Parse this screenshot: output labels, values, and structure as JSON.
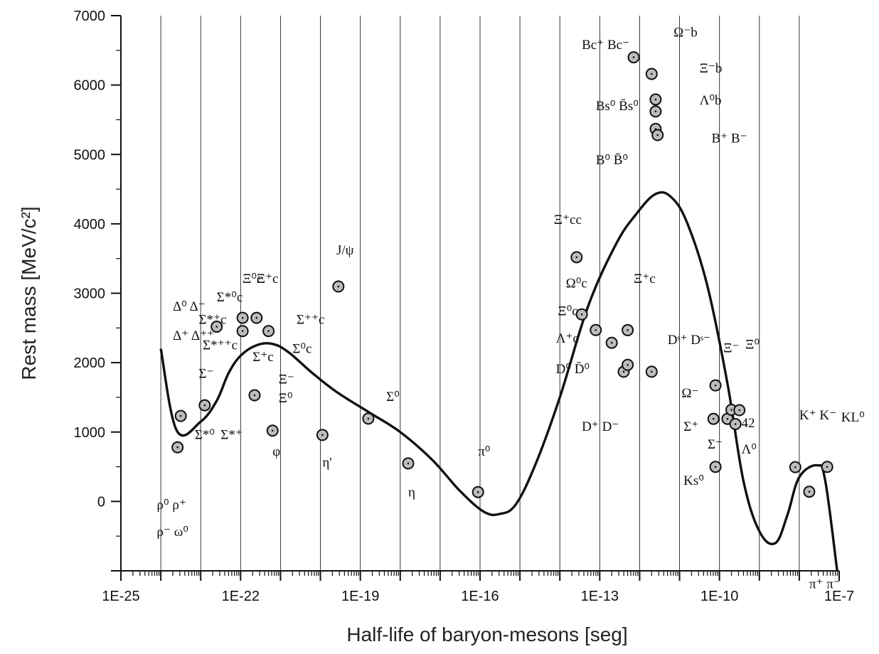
{
  "chart_data": {
    "type": "scatter",
    "xlabel": "Half-life of baryon-mesons [seg]",
    "ylabel": "Rest mass [MeV/c²]",
    "x_scale": "log10",
    "xlim": [
      -25,
      -7
    ],
    "ylim": [
      -1000,
      7000
    ],
    "x_tick_labels": [
      {
        "exp": -25,
        "label": "1E-25"
      },
      {
        "exp": -22,
        "label": "1E-22"
      },
      {
        "exp": -19,
        "label": "1E-19"
      },
      {
        "exp": -16,
        "label": "1E-16"
      },
      {
        "exp": -13,
        "label": "1E-13"
      },
      {
        "exp": -10,
        "label": "1E-10"
      },
      {
        "exp": -7,
        "label": "1E-7"
      }
    ],
    "y_ticks": [
      {
        "value": 0,
        "label": "0"
      },
      {
        "value": 1000,
        "label": "1000"
      },
      {
        "value": 2000,
        "label": "2000"
      },
      {
        "value": 3000,
        "label": "3000"
      },
      {
        "value": 4000,
        "label": "4000"
      },
      {
        "value": 5000,
        "label": "5000"
      },
      {
        "value": 6000,
        "label": "6000"
      },
      {
        "value": 7000,
        "label": "7000"
      }
    ],
    "grid": "vertical lines at each decade",
    "series": [
      {
        "style": "markers",
        "points": [
          {
            "logx": -23.5,
            "y": 1232
          },
          {
            "logx": -23.58,
            "y": 780
          },
          {
            "logx": -22.9,
            "y": 1385
          },
          {
            "logx": -22.6,
            "y": 2518
          },
          {
            "logx": -21.95,
            "y": 2645
          },
          {
            "logx": -21.95,
            "y": 2455
          },
          {
            "logx": -21.6,
            "y": 2645
          },
          {
            "logx": -21.3,
            "y": 2455
          },
          {
            "logx": -21.65,
            "y": 1530
          },
          {
            "logx": -21.2,
            "y": 1020
          },
          {
            "logx": -19.95,
            "y": 958
          },
          {
            "logx": -19.55,
            "y": 3097
          },
          {
            "logx": -18.8,
            "y": 1193
          },
          {
            "logx": -17.8,
            "y": 548
          },
          {
            "logx": -16.05,
            "y": 135
          },
          {
            "logx": -13.58,
            "y": 3519
          },
          {
            "logx": -13.45,
            "y": 2695
          },
          {
            "logx": -13.1,
            "y": 2470
          },
          {
            "logx": -12.7,
            "y": 2286
          },
          {
            "logx": -12.3,
            "y": 2468
          },
          {
            "logx": -12.4,
            "y": 1869
          },
          {
            "logx": -12.3,
            "y": 1968
          },
          {
            "logx": -11.7,
            "y": 1869
          },
          {
            "logx": -12.15,
            "y": 6400
          },
          {
            "logx": -11.7,
            "y": 6160
          },
          {
            "logx": -11.6,
            "y": 5792
          },
          {
            "logx": -11.6,
            "y": 5620
          },
          {
            "logx": -11.6,
            "y": 5367
          },
          {
            "logx": -11.55,
            "y": 5279
          },
          {
            "logx": -10.1,
            "y": 1672
          },
          {
            "logx": -10.15,
            "y": 1190
          },
          {
            "logx": -9.8,
            "y": 1190
          },
          {
            "logx": -9.7,
            "y": 1320
          },
          {
            "logx": -9.5,
            "y": 1315
          },
          {
            "logx": -9.6,
            "y": 1115
          },
          {
            "logx": -10.1,
            "y": 498
          },
          {
            "logx": -8.1,
            "y": 494
          },
          {
            "logx": -7.75,
            "y": 140
          },
          {
            "logx": -7.3,
            "y": 498
          }
        ]
      },
      {
        "style": "line",
        "points": [
          {
            "logx": -24.0,
            "y": 2200
          },
          {
            "logx": -23.6,
            "y": 1020
          },
          {
            "logx": -23.0,
            "y": 1150
          },
          {
            "logx": -22.6,
            "y": 1450
          },
          {
            "logx": -22.3,
            "y": 1850
          },
          {
            "logx": -22.0,
            "y": 2100
          },
          {
            "logx": -21.6,
            "y": 2250
          },
          {
            "logx": -21.2,
            "y": 2270
          },
          {
            "logx": -20.8,
            "y": 2150
          },
          {
            "logx": -20.2,
            "y": 1850
          },
          {
            "logx": -19.6,
            "y": 1580
          },
          {
            "logx": -18.8,
            "y": 1290
          },
          {
            "logx": -18.0,
            "y": 1000
          },
          {
            "logx": -17.2,
            "y": 600
          },
          {
            "logx": -16.5,
            "y": 150
          },
          {
            "logx": -15.9,
            "y": -150
          },
          {
            "logx": -15.5,
            "y": -180
          },
          {
            "logx": -15.1,
            "y": -40
          },
          {
            "logx": -14.6,
            "y": 550
          },
          {
            "logx": -14.0,
            "y": 1500
          },
          {
            "logx": -13.3,
            "y": 2800
          },
          {
            "logx": -12.6,
            "y": 3700
          },
          {
            "logx": -12.1,
            "y": 4130
          },
          {
            "logx": -11.6,
            "y": 4430
          },
          {
            "logx": -11.2,
            "y": 4380
          },
          {
            "logx": -10.8,
            "y": 4000
          },
          {
            "logx": -10.3,
            "y": 3100
          },
          {
            "logx": -9.8,
            "y": 1700
          },
          {
            "logx": -9.4,
            "y": 300
          },
          {
            "logx": -9.0,
            "y": -430
          },
          {
            "logx": -8.6,
            "y": -600
          },
          {
            "logx": -8.3,
            "y": -200
          },
          {
            "logx": -8.0,
            "y": 350
          },
          {
            "logx": -7.55,
            "y": 520
          },
          {
            "logx": -7.35,
            "y": 300
          },
          {
            "logx": -7.05,
            "y": -1000
          }
        ]
      }
    ],
    "annotations": [
      {
        "text": "Δ⁰ Δ⁻",
        "logx": -23.7,
        "y": 2750
      },
      {
        "text": "Δ⁺ Δ⁺⁺",
        "logx": -23.7,
        "y": 2330
      },
      {
        "text": "ρ⁰ ρ⁺",
        "logx": -24.1,
        "y": -110
      },
      {
        "text": "ρ⁻ ω⁰",
        "logx": -24.1,
        "y": -500
      },
      {
        "text": "Σ*⁰c",
        "logx": -22.6,
        "y": 2880
      },
      {
        "text": "Σ*⁺c",
        "logx": -23.05,
        "y": 2560
      },
      {
        "text": "Σ*⁺⁺c",
        "logx": -22.95,
        "y": 2190
      },
      {
        "text": "Σ⁻",
        "logx": -23.05,
        "y": 1780
      },
      {
        "text": "Σ*⁰",
        "logx": -23.15,
        "y": 900
      },
      {
        "text": "Σ*⁺",
        "logx": -22.5,
        "y": 900
      },
      {
        "text": "Ξ⁰c",
        "logx": -21.95,
        "y": 3150
      },
      {
        "text": "Ξ⁺c",
        "logx": -21.6,
        "y": 3150
      },
      {
        "text": "Σ⁺⁺c",
        "logx": -20.6,
        "y": 2560
      },
      {
        "text": "Σ⁰c",
        "logx": -20.7,
        "y": 2140
      },
      {
        "text": "Σ⁺c",
        "logx": -21.7,
        "y": 2020
      },
      {
        "text": "Ξ⁻",
        "logx": -21.05,
        "y": 1700
      },
      {
        "text": "Ξ⁰",
        "logx": -21.05,
        "y": 1430
      },
      {
        "text": "φ",
        "logx": -21.2,
        "y": 660
      },
      {
        "text": "η'",
        "logx": -19.95,
        "y": 500
      },
      {
        "text": "J/ψ",
        "logx": -19.6,
        "y": 3560
      },
      {
        "text": "Σ⁰",
        "logx": -18.35,
        "y": 1450
      },
      {
        "text": "η",
        "logx": -17.8,
        "y": 70
      },
      {
        "text": "π⁰",
        "logx": -16.05,
        "y": 660
      },
      {
        "text": "Ξ⁺cc",
        "logx": -14.15,
        "y": 4000
      },
      {
        "text": "Ω⁰c",
        "logx": -13.85,
        "y": 3080
      },
      {
        "text": "Ξ⁰c",
        "logx": -14.05,
        "y": 2680
      },
      {
        "text": "Λ⁺c",
        "logx": -14.1,
        "y": 2290
      },
      {
        "text": "Ξ⁺c",
        "logx": -12.15,
        "y": 3150
      },
      {
        "text": "D⁰ D̄⁰",
        "logx": -14.1,
        "y": 1850
      },
      {
        "text": "Dˢ⁺ Dˢ⁻",
        "logx": -11.3,
        "y": 2270
      },
      {
        "text": "D⁺ D⁻",
        "logx": -13.45,
        "y": 1020
      },
      {
        "text": "Bc⁺ Bc⁻",
        "logx": -13.45,
        "y": 6520
      },
      {
        "text": "Ω⁻b",
        "logx": -11.15,
        "y": 6700
      },
      {
        "text": "Ξ⁻b",
        "logx": -10.5,
        "y": 6180
      },
      {
        "text": "Bs⁰ B̄s⁰",
        "logx": -13.1,
        "y": 5640
      },
      {
        "text": "Λ⁰b",
        "logx": -10.5,
        "y": 5720
      },
      {
        "text": "B⁺ B⁻",
        "logx": -10.2,
        "y": 5170
      },
      {
        "text": "B⁰ B̄⁰",
        "logx": -13.1,
        "y": 4860
      },
      {
        "text": "Ω⁻",
        "logx": -10.95,
        "y": 1500
      },
      {
        "text": "Ξ⁻",
        "logx": -9.9,
        "y": 2150
      },
      {
        "text": "Ξ⁰",
        "logx": -9.35,
        "y": 2200
      },
      {
        "text": "Σ⁺",
        "logx": -10.9,
        "y": 1020
      },
      {
        "text": "Σ⁻",
        "logx": -10.3,
        "y": 760
      },
      {
        "text": "42",
        "logx": -9.45,
        "y": 1070
      },
      {
        "text": "Λ⁰",
        "logx": -9.45,
        "y": 690
      },
      {
        "text": "Ks⁰",
        "logx": -10.9,
        "y": 240
      },
      {
        "text": "K⁺ K⁻",
        "logx": -8.0,
        "y": 1180
      },
      {
        "text": "KL⁰",
        "logx": -6.95,
        "y": 1150
      },
      {
        "text": "π⁺ π⁻",
        "logx": -7.75,
        "y": -1250
      }
    ]
  }
}
